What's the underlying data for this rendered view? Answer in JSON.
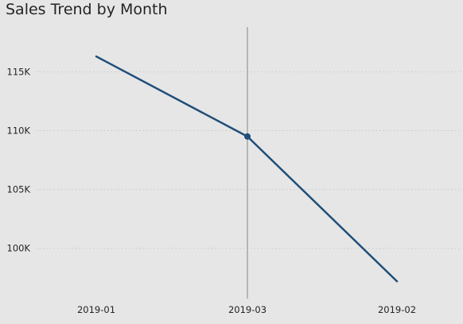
{
  "chart_data": {
    "type": "line",
    "title": "Sales Trend by Month",
    "xlabel": "",
    "ylabel": "",
    "categories": [
      "2019-01",
      "2019-03",
      "2019-02"
    ],
    "series": [
      {
        "values": [
          116300,
          109500,
          97200
        ]
      }
    ],
    "ylim": [
      96000,
      118800
    ],
    "yticks": [
      100000,
      105000,
      110000,
      115000
    ],
    "ytick_labels": [
      "100K",
      "105K",
      "110K",
      "115K"
    ],
    "grid": true,
    "highlighted_category": "2019-03",
    "line_color": "#1f4e79",
    "crosshair_color": "#a6a6a6",
    "background_color": "#e6e6e6"
  }
}
